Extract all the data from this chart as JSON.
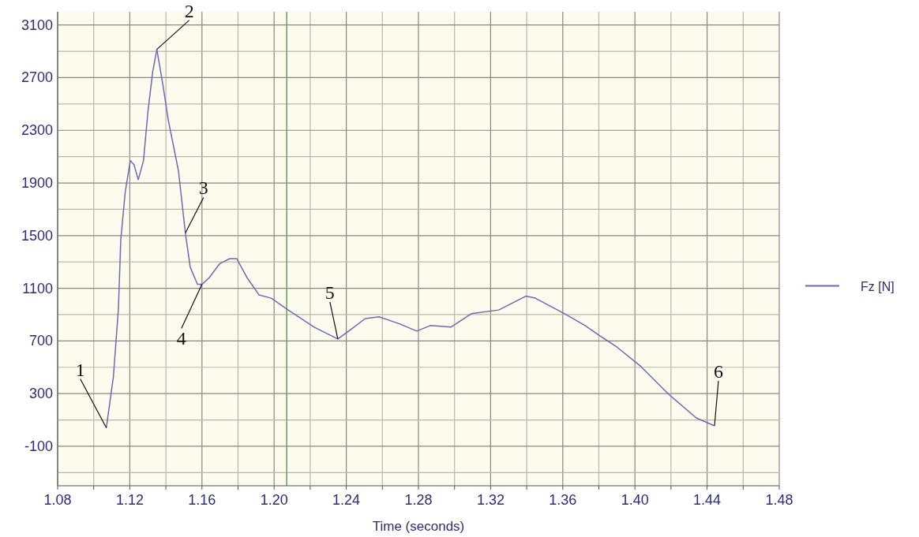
{
  "chart_data": {
    "type": "line",
    "xlabel": "Time (seconds)",
    "xlim": [
      1.08,
      1.48
    ],
    "ylim": [
      -400,
      3200
    ],
    "xticks": [
      1.08,
      {
        "value": 1.1,
        "label": null
      },
      1.12,
      {
        "value": 1.14,
        "label": null
      },
      1.16,
      {
        "value": 1.18,
        "label": null
      },
      {
        "value": 1.2,
        "label": "1.20"
      },
      {
        "value": 1.22,
        "label": null
      },
      1.24,
      {
        "value": 1.26,
        "label": null
      },
      1.28,
      {
        "value": 1.3,
        "label": null
      },
      1.32,
      {
        "value": 1.34,
        "label": null
      },
      1.36,
      {
        "value": 1.38,
        "label": null
      },
      {
        "value": 1.4,
        "label": "1.40"
      },
      {
        "value": 1.42,
        "label": null
      },
      1.44,
      {
        "value": 1.46,
        "label": null
      },
      1.48
    ],
    "yticks": [
      {
        "value": -300,
        "label": null
      },
      -100,
      {
        "value": 100,
        "label": null
      },
      300,
      {
        "value": 500,
        "label": null
      },
      700,
      {
        "value": 900,
        "label": null
      },
      1100,
      {
        "value": 1300,
        "label": null
      },
      1500,
      {
        "value": 1700,
        "label": null
      },
      1900,
      {
        "value": 2100,
        "label": null
      },
      2300,
      {
        "value": 2500,
        "label": null
      },
      2700,
      {
        "value": 2900,
        "label": null
      },
      3100
    ],
    "grid": true,
    "legend": "right",
    "ref_lines": [
      {
        "axis": "x",
        "value": 1.207,
        "color": "#4caf50"
      }
    ],
    "series": [
      {
        "name": "Fz [N]",
        "color": "#6a6ab8",
        "x": [
          1.107,
          1.1109,
          1.1137,
          1.115,
          1.1175,
          1.1203,
          1.1223,
          1.1247,
          1.1276,
          1.13,
          1.1327,
          1.135,
          1.1384,
          1.1413,
          1.147,
          1.1508,
          1.1535,
          1.1575,
          1.16,
          1.164,
          1.1697,
          1.1754,
          1.1793,
          1.185,
          1.1916,
          1.1984,
          1.2078,
          1.2222,
          1.2353,
          1.2428,
          1.2505,
          1.2581,
          1.2695,
          1.2791,
          1.2866,
          1.298,
          1.3093,
          1.3245,
          1.3395,
          1.3448,
          1.361,
          1.3724,
          1.3807,
          1.3894,
          1.4034,
          1.4187,
          1.434,
          1.4441
        ],
        "values": [
          40,
          427,
          948,
          1470,
          1835,
          2070,
          2040,
          1925,
          2070,
          2435,
          2745,
          2915,
          2640,
          2380,
          1990,
          1520,
          1260,
          1130,
          1130,
          1180,
          1285,
          1325,
          1325,
          1180,
          1050,
          1025,
          935,
          805,
          715,
          790,
          870,
          883,
          830,
          775,
          817,
          805,
          907,
          935,
          1040,
          1025,
          907,
          817,
          738,
          660,
          505,
          295,
          115,
          55
        ]
      }
    ],
    "annotations": [
      {
        "text": "1",
        "x": 1.107,
        "y": 40
      },
      {
        "text": "2",
        "x": 1.135,
        "y": 2915
      },
      {
        "text": "3",
        "x": 1.1508,
        "y": 1520
      },
      {
        "text": "4",
        "x": 1.16,
        "y": 1130
      },
      {
        "text": "5",
        "x": 1.2353,
        "y": 715
      },
      {
        "text": "6",
        "x": 1.4441,
        "y": 55
      }
    ]
  }
}
